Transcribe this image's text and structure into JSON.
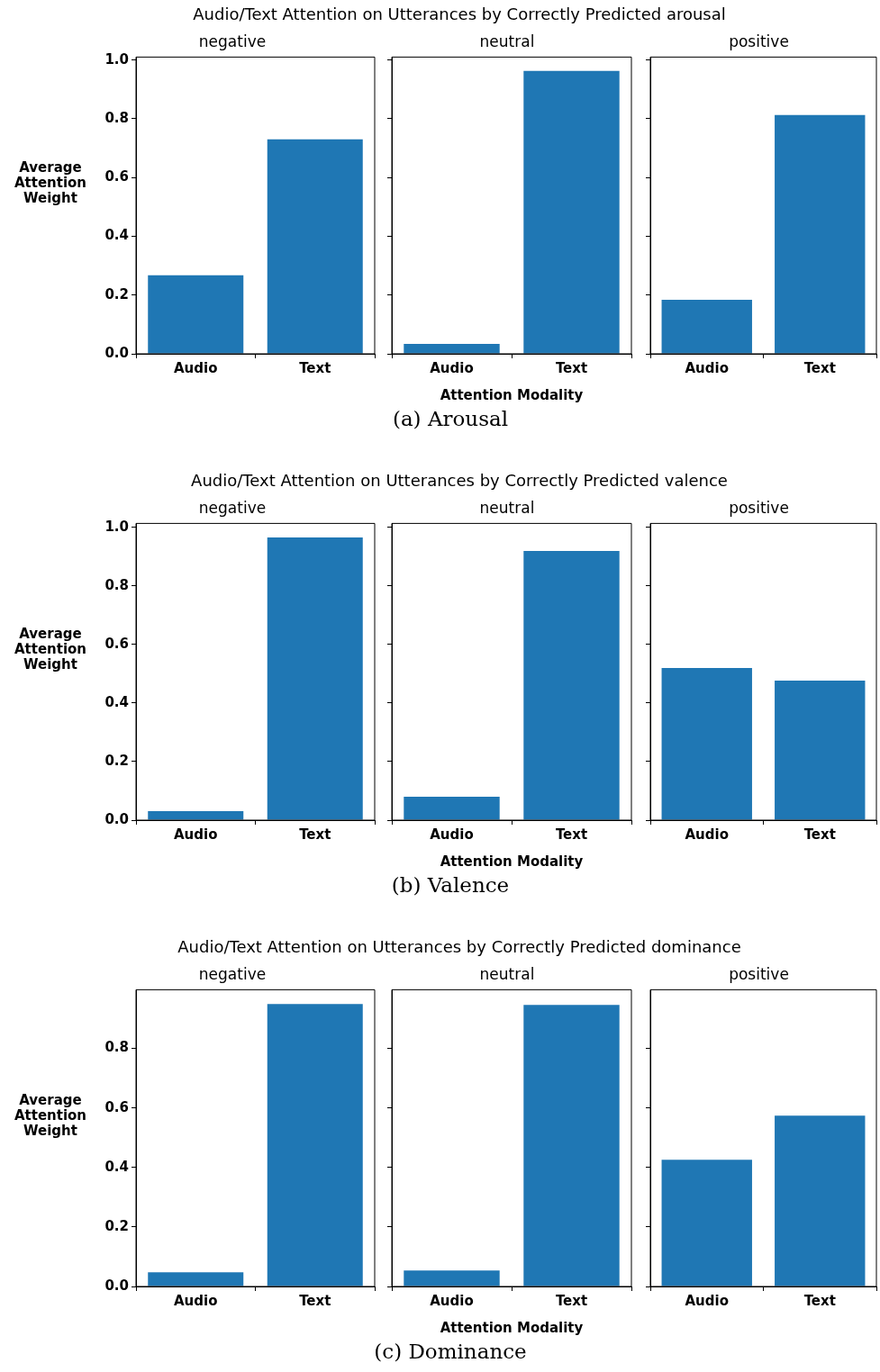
{
  "chart_data": [
    {
      "type": "bar",
      "title": "negative",
      "ylabel": "Average Attention Weight",
      "categories": [
        "Audio",
        "Text"
      ],
      "values": [
        0.267,
        0.73
      ],
      "color": "#1f77b4",
      "ylim": [
        0,
        1.01
      ],
      "yticks": [
        {
          "value": 0,
          "label": "0.0"
        },
        {
          "value": 0.2,
          "label": "0.2"
        },
        {
          "value": 0.4,
          "label": "0.4"
        },
        {
          "value": 0.6,
          "label": "0.6"
        },
        {
          "value": 0.8,
          "label": "0.8"
        },
        {
          "value": 1,
          "label": "1.0"
        }
      ],
      "grid": false
    },
    {
      "type": "bar",
      "title": "neutral",
      "xlabel": "Attention Modality",
      "annotations": [
        "Audio/Text Attention on Utterances by Correctly Predicted arousal",
        "(a) Arousal"
      ],
      "categories": [
        "Audio",
        "Text"
      ],
      "values": [
        0.034,
        0.963
      ],
      "color": "#1f77b4",
      "ylim": [
        0,
        1.01
      ],
      "yticks": [
        {
          "value": 0,
          "label": null
        },
        {
          "value": 0.2,
          "label": null
        },
        {
          "value": 0.4,
          "label": null
        },
        {
          "value": 0.6,
          "label": null
        },
        {
          "value": 0.8,
          "label": null
        },
        {
          "value": 1,
          "label": null
        }
      ],
      "grid": false,
      "tick_labels": "x"
    },
    {
      "type": "bar",
      "title": "positive",
      "categories": [
        "Audio",
        "Text"
      ],
      "values": [
        0.184,
        0.813
      ],
      "color": "#1f77b4",
      "ylim": [
        0,
        1.01
      ],
      "yticks": [
        {
          "value": 0,
          "label": null
        },
        {
          "value": 0.2,
          "label": null
        },
        {
          "value": 0.4,
          "label": null
        },
        {
          "value": 0.6,
          "label": null
        },
        {
          "value": 0.8,
          "label": null
        },
        {
          "value": 1,
          "label": null
        }
      ],
      "grid": false,
      "tick_labels": "x"
    },
    {
      "type": "bar",
      "title": "negative",
      "ylabel": "Average Attention Weight",
      "categories": [
        "Audio",
        "Text"
      ],
      "values": [
        0.031,
        0.966
      ],
      "color": "#1f77b4",
      "ylim": [
        0,
        1.014
      ],
      "yticks": [
        {
          "value": 0,
          "label": "0.0"
        },
        {
          "value": 0.2,
          "label": "0.2"
        },
        {
          "value": 0.4,
          "label": "0.4"
        },
        {
          "value": 0.6,
          "label": "0.6"
        },
        {
          "value": 0.8,
          "label": "0.8"
        },
        {
          "value": 1,
          "label": "1.0"
        }
      ],
      "grid": false
    },
    {
      "type": "bar",
      "title": "neutral",
      "xlabel": "Attention Modality",
      "annotations": [
        "Audio/Text Attention on Utterances by Correctly Predicted valence",
        "(b) Valence"
      ],
      "categories": [
        "Audio",
        "Text"
      ],
      "values": [
        0.08,
        0.92
      ],
      "color": "#1f77b4",
      "ylim": [
        0,
        1.014
      ],
      "yticks": [
        {
          "value": 0,
          "label": null
        },
        {
          "value": 0.2,
          "label": null
        },
        {
          "value": 0.4,
          "label": null
        },
        {
          "value": 0.6,
          "label": null
        },
        {
          "value": 0.8,
          "label": null
        },
        {
          "value": 1,
          "label": null
        }
      ],
      "grid": false,
      "tick_labels": "x"
    },
    {
      "type": "bar",
      "title": "positive",
      "categories": [
        "Audio",
        "Text"
      ],
      "values": [
        0.52,
        0.477
      ],
      "color": "#1f77b4",
      "ylim": [
        0,
        1.014
      ],
      "yticks": [
        {
          "value": 0,
          "label": null
        },
        {
          "value": 0.2,
          "label": null
        },
        {
          "value": 0.4,
          "label": null
        },
        {
          "value": 0.6,
          "label": null
        },
        {
          "value": 0.8,
          "label": null
        },
        {
          "value": 1,
          "label": null
        }
      ],
      "grid": false,
      "tick_labels": "x"
    },
    {
      "type": "bar",
      "title": "negative",
      "ylabel": "Average Attention Weight",
      "categories": [
        "Audio",
        "Text"
      ],
      "values": [
        0.048,
        0.949
      ],
      "color": "#1f77b4",
      "ylim": [
        0,
        0.997
      ],
      "yticks": [
        {
          "value": 0,
          "label": "0.0"
        },
        {
          "value": 0.2,
          "label": "0.2"
        },
        {
          "value": 0.4,
          "label": "0.4"
        },
        {
          "value": 0.6,
          "label": "0.6"
        },
        {
          "value": 0.8,
          "label": "0.8"
        }
      ],
      "grid": false
    },
    {
      "type": "bar",
      "title": "neutral",
      "xlabel": "Attention Modality",
      "annotations": [
        "Audio/Text Attention on Utterances by Correctly Predicted dominance",
        "(c) Dominance"
      ],
      "categories": [
        "Audio",
        "Text"
      ],
      "values": [
        0.054,
        0.946
      ],
      "color": "#1f77b4",
      "ylim": [
        0,
        0.997
      ],
      "yticks": [
        {
          "value": 0,
          "label": null
        },
        {
          "value": 0.2,
          "label": null
        },
        {
          "value": 0.4,
          "label": null
        },
        {
          "value": 0.6,
          "label": null
        },
        {
          "value": 0.8,
          "label": null
        }
      ],
      "grid": false,
      "tick_labels": "x"
    },
    {
      "type": "bar",
      "title": "positive",
      "categories": [
        "Audio",
        "Text"
      ],
      "values": [
        0.426,
        0.574
      ],
      "color": "#1f77b4",
      "ylim": [
        0,
        0.997
      ],
      "yticks": [
        {
          "value": 0,
          "label": null
        },
        {
          "value": 0.2,
          "label": null
        },
        {
          "value": 0.4,
          "label": null
        },
        {
          "value": 0.6,
          "label": null
        },
        {
          "value": 0.8,
          "label": null
        }
      ],
      "grid": false,
      "tick_labels": "x"
    }
  ]
}
